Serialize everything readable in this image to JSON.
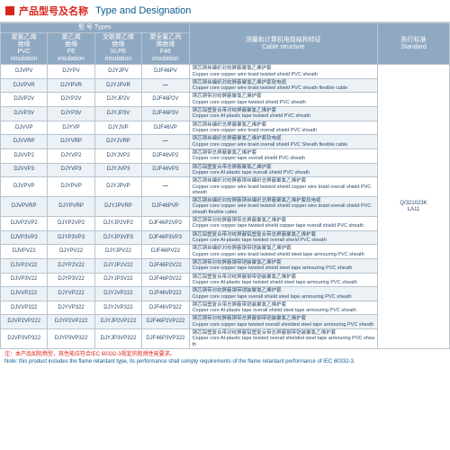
{
  "header": {
    "cn": "产品型号及名称",
    "en": "Type and Designation"
  },
  "cols": [
    {
      "cn": "聚氯乙烯<br>绝缘<br>PVC<br>insulation"
    },
    {
      "cn": "聚乙烯<br>绝缘<br>PE<br>insulation"
    },
    {
      "cn": "交联聚乙烯<br>绝缘<br>XLPE<br>insulation"
    },
    {
      "cn": "聚全氟乙丙<br>烯绝缘<br>F46<br>insulation"
    },
    {
      "cn": "测量和计算机电缆结构特征<br>Cable structure"
    },
    {
      "cn": "执行标准<br>Standard"
    }
  ],
  "thtypes": {
    "cn": "型 号 Types"
  },
  "std": "Q/321023K<br>LA11",
  "rows": [
    {
      "z": 0,
      "c": [
        "DJVPV",
        "DJYPV",
        "DJYJPV",
        "DJF46PV"
      ],
      "d": "铜芯铜丝编织对绞屏蔽聚氯乙烯护套<br>Copper core copper wire braid twisted shield PVC sheath"
    },
    {
      "z": 1,
      "c": [
        "DJVPVR",
        "DJYPVR",
        "DJYJPVR",
        "—"
      ],
      "d": "铜芯铜丝编织对绞屏蔽聚氯乙烯护套软电缆<br>Copper core copper wire braid twisted shield PVC sheath flexible cable"
    },
    {
      "z": 0,
      "c": [
        "DJVP2V",
        "DJYP2V",
        "DJYJP2V",
        "DJF46P2V"
      ],
      "d": "铜芯铜带对绞屏蔽聚氯乙烯护套<br>Copper core copper tape twisted shield PVC sheath"
    },
    {
      "z": 1,
      "c": [
        "DJVP3V",
        "DJYP3V",
        "DJYJP3V",
        "DJF46P3V"
      ],
      "d": "铜芯铝塑复合带对绞屏蔽聚氯乙烯护套<br>Copper core Al-plastic tape twisted shield PVC sheath"
    },
    {
      "z": 0,
      "c": [
        "DJVVP",
        "DJYVP",
        "DJYJVP",
        "DJF46VP"
      ],
      "d": "铜芯铜丝编织总屏蔽聚氯乙烯护套<br>Copper core copper wire braid overall shield PVC sheath"
    },
    {
      "z": 1,
      "c": [
        "DJVVRP",
        "DJYVRP",
        "DJYJVRP",
        "—"
      ],
      "d": "铜芯铜丝编织总屏蔽聚氯乙烯护套软电缆<br>Copper core copper wire braid overall shield PVC Sheath flexible cable"
    },
    {
      "z": 0,
      "c": [
        "DJVVP2",
        "DJYVP2",
        "DJYJVP2",
        "DJF46VP2"
      ],
      "d": "铜芯铜带总屏蔽聚氯乙烯护套<br>Copper core copper tape overall shield PVC sheath"
    },
    {
      "z": 1,
      "c": [
        "DJVVP3",
        "DJYVP3",
        "DJYJVP3",
        "DJF46VP3"
      ],
      "d": "铜芯铝塑复合带总屏蔽聚氯乙烯护套<br>Copper core Al-plastic tape overall shield PVC sheath"
    },
    {
      "z": 0,
      "c": [
        "DJVPVP",
        "DJYPVP",
        "DJYJPVP",
        "—"
      ],
      "d": "铜芯铜丝编织对绞屏蔽铜丝编织总屏蔽聚氯乙烯护套<br>Copper core copper wire braid twisted shield copper wire braid overall shield PVC sheath"
    },
    {
      "z": 1,
      "c": [
        "DJVPVRP",
        "DJYPVRP",
        "DJYJPVRP",
        "DJF46PVP"
      ],
      "d": "铜芯铜丝编织对绞屏蔽铜丝编织总屏蔽聚氯乙烯护套软电缆<br>Copper core copper wire braid twisted shield copper wire braid overall shield PVC sheath flexible cable"
    },
    {
      "z": 0,
      "c": [
        "DJVP2VP2",
        "DJYP2VP2",
        "DJYJP2VP2",
        "DJF46P2VP2"
      ],
      "d": "铜芯铜带对绞屏蔽铜带总屏蔽聚氯乙烯护套<br>Copper core copper tape twisted shield copper tape overall shield PVC sheath"
    },
    {
      "z": 1,
      "c": [
        "DJVP3VP3",
        "DJYP3VP3",
        "DJYJP3VP3",
        "DJF46P3VP3"
      ],
      "d": "铜芯铝塑复合带对绞屏蔽铝塑复合带总屏蔽聚氯乙烯护套<br>Copper core Al-plastic tape twisted overall shield PVC sheath"
    },
    {
      "z": 0,
      "c": [
        "DJVPV22",
        "DJYPV22",
        "DJYJPV22",
        "DJF46PV22"
      ],
      "d": "铜芯铜丝编织对绞屏蔽钢带铠装聚氯乙烯护套<br>Copper core copper wire braid twisted shield steel tape armouring PVC sheath"
    },
    {
      "z": 1,
      "c": [
        "DJVP2V22",
        "DJYP2V22",
        "DJYJP2V22",
        "DJF46P2V22"
      ],
      "d": "铜芯铜带对绞屏蔽钢带铠装聚氯乙烯护套<br>Copper core copper tape twisted shield steel tape armouring PVC sheath"
    },
    {
      "z": 0,
      "c": [
        "DJVP3V22",
        "DJYP3V22",
        "DJYJP3V22",
        "DJF46P3V22"
      ],
      "d": "铜芯铝塑复合带对绞屏蔽钢带铠装聚氯乙烯护套<br>Copper core Al-plastic tape twisted shield steel tape armouring PVC sheath"
    },
    {
      "z": 1,
      "c": [
        "DJVVP222",
        "DJYVP222",
        "DJYJVP222",
        "DJF46VP222"
      ],
      "d": "铜芯铜带对绞屏蔽钢带铠装聚氯乙烯护套<br>Copper core copper tape overall shield steel tape armouring PVC sheath"
    },
    {
      "z": 0,
      "c": [
        "DJVVP322",
        "DJYVP322",
        "DJYJVP322",
        "DJF46VP322"
      ],
      "d": "铜芯铝塑复合带总屏蔽带铠装聚氯乙烯护套<br>Copper core Al-plastic tape overall shield steel tape armouring PVC sheath"
    },
    {
      "z": 1,
      "c": [
        "DJVP2VP222",
        "DJYP2VP222",
        "DJYJP2VP222",
        "DJF46P2VP222"
      ],
      "d": "铜芯铜带对绞屏蔽铜带总屏蔽钢带铠装聚氯乙烯护套<br>Copper core copper tape twisted overall shielded steel tape armouring PVC sheath"
    },
    {
      "z": 0,
      "c": [
        "DJVP3VP322",
        "DJYP3VP322",
        "DJYJP3VP322",
        "DJF46P3VP322"
      ],
      "d": "铜芯铝塑复合带对绞屏蔽铝塑复合带总屏蔽钢带铠装聚氯乙烯护套<br>Copper core Al-plastic tape twisted overall shielded steel tape armouring PVC sheath"
    }
  ],
  "footer": {
    "cn": "注：本产品如阻燃型，其性能应符合IEC 60332-3规定的阻燃性能要求。",
    "en": "Note: this product includes the flame retardant type, its performance shall comply requirements of the flame retardant performance of IEC 60332-3."
  }
}
